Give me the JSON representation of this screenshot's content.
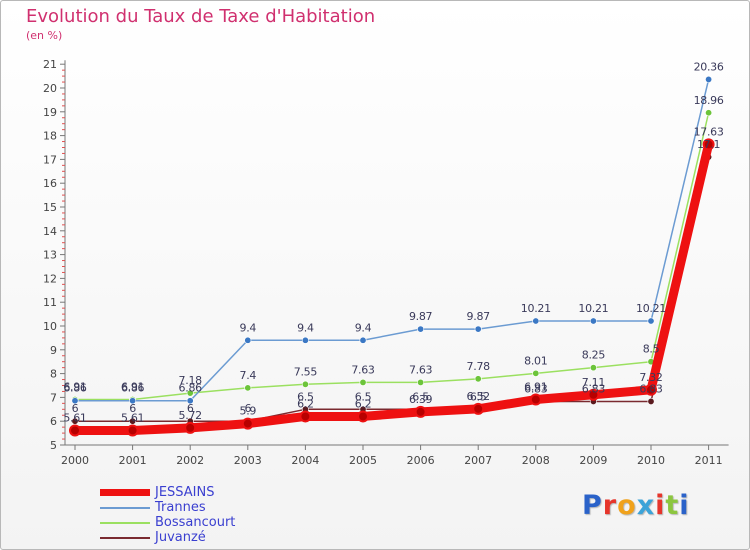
{
  "title": "Evolution du Taux de Taxe d'Habitation",
  "subtitle": "(en %)",
  "logo": {
    "text": "Proxiti",
    "colors": [
      "#2a62c9",
      "#e6352b",
      "#f0a21c",
      "#3ca3d8",
      "#e6352b",
      "#8cc63f",
      "#2a62c9"
    ]
  },
  "chart_data": {
    "type": "line",
    "x": [
      "2000",
      "2001",
      "2002",
      "2003",
      "2004",
      "2005",
      "2006",
      "2007",
      "2008",
      "2009",
      "2010",
      "2011"
    ],
    "yticks": [
      "5",
      "6",
      "7",
      "8",
      "9",
      "10",
      "11",
      "12",
      "13",
      "14",
      "15",
      "16",
      "17",
      "18",
      "19",
      "20",
      "21"
    ],
    "ylim": [
      5,
      21
    ],
    "grid": false,
    "legend_position": "bottom-left",
    "series": [
      {
        "name": "Juvanzé",
        "color": "#7a2a30",
        "values": [
          6,
          6,
          6,
          6,
          6.5,
          6.5,
          6.5,
          6.5,
          6.83,
          6.83,
          6.83,
          17.1
        ],
        "labels": [
          "6",
          "6",
          "6",
          "6",
          "6.5",
          "6.5",
          "6.5",
          "6.5",
          "6.83",
          "6.83",
          "6.83",
          "17.1"
        ]
      },
      {
        "name": "Bossancourt",
        "color": "#9be060",
        "values": [
          6.91,
          6.91,
          7.18,
          7.4,
          7.55,
          7.63,
          7.63,
          7.78,
          8.01,
          8.25,
          8.5,
          18.96
        ],
        "labels": [
          "6.91",
          "6.91",
          "7.18",
          "7.4",
          "7.55",
          "7.63",
          "7.63",
          "7.78",
          "8.01",
          "8.25",
          "8.5",
          "18.96"
        ]
      },
      {
        "name": "Trannes",
        "color": "#6b9bd2",
        "values": [
          6.86,
          6.86,
          6.86,
          9.4,
          9.4,
          9.4,
          9.87,
          9.87,
          10.21,
          10.21,
          10.21,
          20.36
        ],
        "labels": [
          "6.86",
          "6.86",
          "6.86",
          "9.4",
          "9.4",
          "9.4",
          "9.87",
          "9.87",
          "10.21",
          "10.21",
          "10.21",
          "20.36"
        ]
      },
      {
        "name": "JESSAINS",
        "color": "#ee1111",
        "values": [
          5.61,
          5.61,
          5.72,
          5.9,
          6.2,
          6.2,
          6.39,
          6.52,
          6.91,
          7.11,
          7.32,
          17.63
        ],
        "labels": [
          "5.61",
          "5.61",
          "5.72",
          "5.9",
          "6.2",
          "6.2",
          "6.39",
          "6.52",
          "6.91",
          "7.11",
          "7.32",
          "17.63"
        ]
      }
    ],
    "legend": [
      "JESSAINS",
      "Trannes",
      "Bossancourt",
      "Juvanzé"
    ]
  }
}
